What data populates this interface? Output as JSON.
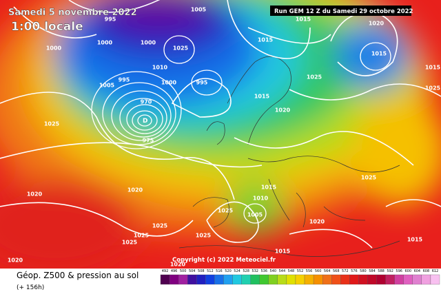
{
  "header": {
    "valid_date": "Samedi 5 novembre 2022",
    "local_time": "1:00 locale",
    "run": "Run GEM 12 Z du Samedi 29 octobre 2022"
  },
  "copyright": "Copyright (c) 2022 Meteociel.fr",
  "footer": {
    "title": "Géop. Z500 & pression au sol",
    "lead": "(+ 156h)"
  },
  "legend": {
    "values": [
      492,
      496,
      500,
      504,
      508,
      512,
      516,
      520,
      524,
      528,
      532,
      536,
      540,
      544,
      548,
      552,
      556,
      560,
      564,
      568,
      572,
      576,
      580,
      584,
      588,
      592,
      596,
      600,
      604,
      608,
      612
    ]
  },
  "isobar_labels": [
    "995",
    "1000",
    "1000",
    "1000",
    "1005",
    "1025",
    "1010",
    "995",
    "1000",
    "995",
    "1005",
    "970",
    "975",
    "1025",
    "1015",
    "1015",
    "1020",
    "1015",
    "1025",
    "1015",
    "1020",
    "1015",
    "1025",
    "1020",
    "1020",
    "1015",
    "1010",
    "1025",
    "1005",
    "1020",
    "1025",
    "1025",
    "1025",
    "1025",
    "1020",
    "1020",
    "1015",
    "1015",
    "1025"
  ]
}
